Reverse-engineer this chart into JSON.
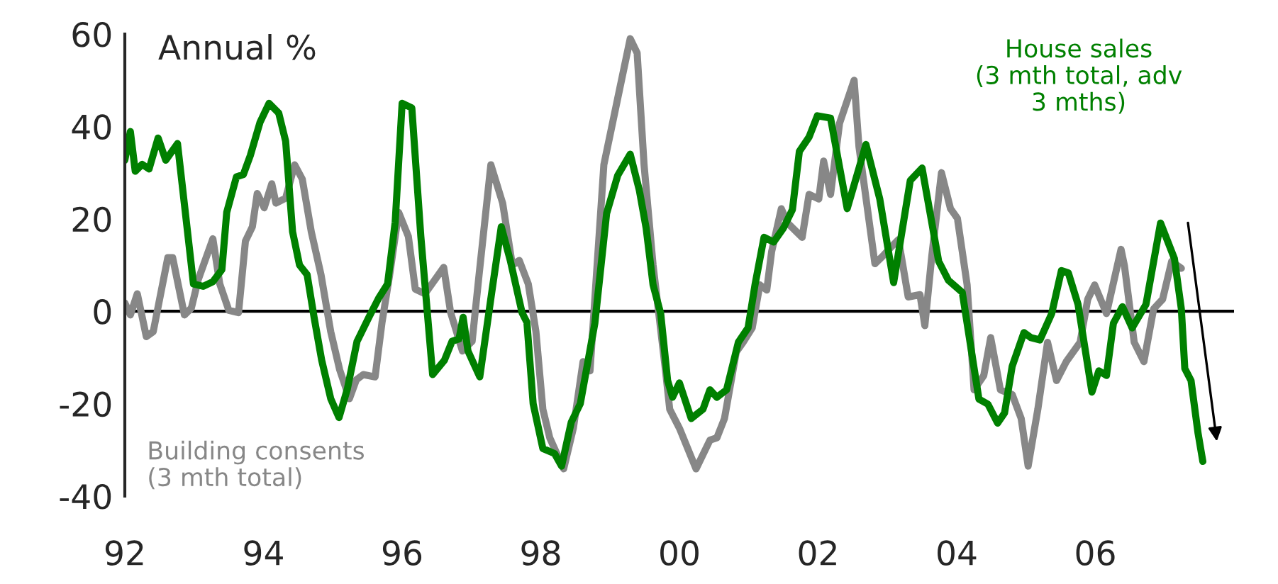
{
  "chart_data": {
    "type": "line",
    "annotations": [
      "Annual %"
    ],
    "xlim": [
      1992,
      2008
    ],
    "xticks": [
      {
        "value": 1992,
        "label": "92"
      },
      {
        "value": 1994,
        "label": "94"
      },
      {
        "value": 1996,
        "label": "96"
      },
      {
        "value": 1998,
        "label": "98"
      },
      {
        "value": 2000,
        "label": "00"
      },
      {
        "value": 2002,
        "label": "02"
      },
      {
        "value": 2004,
        "label": "04"
      },
      {
        "value": 2006,
        "label": "06"
      }
    ],
    "ylim": [
      -40,
      60
    ],
    "yticks": [
      -40,
      -20,
      0,
      20,
      40,
      60
    ],
    "ref_lines": [
      {
        "axis": "y",
        "value": 0,
        "color": "#000000"
      }
    ],
    "legend": false,
    "marker": "none",
    "line_style": "solid",
    "series": [
      {
        "name": "Building consents\n(3 mth total)",
        "color": "#878787",
        "x": [
          1992.0,
          1992.08,
          1992.18,
          1992.31,
          1992.41,
          1992.62,
          1992.69,
          1992.86,
          1992.96,
          1993.06,
          1993.27,
          1993.37,
          1993.5,
          1993.64,
          1993.74,
          1993.84,
          1993.91,
          1994.01,
          1994.12,
          1994.18,
          1994.32,
          1994.45,
          1994.56,
          1994.69,
          1994.83,
          1994.97,
          1995.1,
          1995.24,
          1995.34,
          1995.44,
          1995.61,
          1995.71,
          1995.82,
          1995.95,
          1996.09,
          1996.19,
          1996.33,
          1996.6,
          1996.7,
          1996.87,
          1997.01,
          1997.11,
          1997.28,
          1997.45,
          1997.59,
          1997.69,
          1997.82,
          1997.93,
          1998.03,
          1998.13,
          1998.33,
          1998.47,
          1998.61,
          1998.71,
          1998.91,
          1999.11,
          1999.29,
          1999.39,
          1999.49,
          1999.62,
          1999.8,
          1999.86,
          2000.0,
          2000.24,
          2000.44,
          2000.54,
          2000.65,
          2000.82,
          2000.92,
          2001.05,
          2001.16,
          2001.26,
          2001.33,
          2001.47,
          2001.56,
          2001.77,
          2001.87,
          2002.01,
          2002.08,
          2002.18,
          2002.31,
          2002.52,
          2002.59,
          2002.82,
          2002.93,
          2003.06,
          2003.16,
          2003.3,
          2003.47,
          2003.54,
          2003.64,
          2003.78,
          2003.91,
          2004.01,
          2004.15,
          2004.25,
          2004.39,
          2004.49,
          2004.63,
          2004.8,
          2004.93,
          2005.03,
          2005.17,
          2005.31,
          2005.44,
          2005.58,
          2005.78,
          2005.89,
          2005.99,
          2006.16,
          2006.37,
          2006.42,
          2006.56,
          2006.7,
          2006.84,
          2006.97,
          2007.1,
          2007.24
        ],
        "values": [
          1.8,
          -0.8,
          3.8,
          -5.5,
          -4.4,
          11.6,
          11.6,
          -0.8,
          0.7,
          6.9,
          15.7,
          5.9,
          0.2,
          -0.3,
          15.2,
          18.3,
          25.5,
          22.4,
          27.6,
          23.4,
          24.5,
          31.7,
          28.6,
          17.2,
          7.9,
          -4.4,
          -12.7,
          -18.9,
          -14.8,
          -13.7,
          -14.2,
          -2.4,
          7.9,
          21.4,
          16.2,
          4.8,
          3.8,
          9.5,
          -0.3,
          -8.6,
          -6.5,
          7.9,
          31.7,
          23.4,
          10,
          11,
          5.9,
          -4.4,
          -21.2,
          -27.4,
          -34.1,
          -25.3,
          -10.9,
          -12.9,
          31.7,
          46.1,
          59,
          55.9,
          31.7,
          10,
          -12.9,
          -21.2,
          -25.3,
          -34.1,
          -27.9,
          -27.4,
          -23.2,
          -8.8,
          -6.7,
          -3.6,
          5.7,
          4.6,
          12.9,
          22.2,
          19.1,
          16,
          25.3,
          24.3,
          32.5,
          25.3,
          40.7,
          50,
          35.6,
          10.3,
          11.9,
          14,
          15.5,
          3.1,
          3.6,
          -3.1,
          11.9,
          30,
          22.2,
          20.1,
          5.7,
          -17,
          -13.9,
          -5.7,
          -17,
          -18,
          -23.2,
          -33.5,
          -21.2,
          -6.7,
          -15,
          -10.9,
          -6.7,
          2.6,
          5.7,
          -0.5,
          13.4,
          9.8,
          -6.7,
          -10.9,
          0.5,
          2.6,
          10.8,
          9.3
        ]
      },
      {
        "name": "House sales\n(3 mth total, adv\n3 mths)",
        "color": "#008000",
        "x": [
          1992.0,
          1992.08,
          1992.15,
          1992.25,
          1992.35,
          1992.48,
          1992.59,
          1992.76,
          1992.99,
          1993.13,
          1993.27,
          1993.4,
          1993.47,
          1993.61,
          1993.71,
          1993.81,
          1993.95,
          1994.08,
          1994.22,
          1994.32,
          1994.42,
          1994.52,
          1994.63,
          1994.73,
          1994.84,
          1994.97,
          1995.09,
          1995.21,
          1995.35,
          1995.52,
          1995.66,
          1995.79,
          1995.9,
          1996.0,
          1996.14,
          1996.27,
          1996.44,
          1996.61,
          1996.72,
          1996.82,
          1996.88,
          1996.95,
          1997.12,
          1997.29,
          1997.43,
          1997.56,
          1997.73,
          1997.8,
          1997.89,
          1998.03,
          1998.2,
          1998.3,
          1998.44,
          1998.57,
          1998.78,
          1998.95,
          1999.11,
          1999.29,
          1999.42,
          1999.52,
          1999.62,
          1999.73,
          1999.83,
          1999.9,
          2000.0,
          2000.17,
          2000.34,
          2000.44,
          2000.54,
          2000.68,
          2000.85,
          2000.99,
          2001.09,
          2001.22,
          2001.36,
          2001.5,
          2001.63,
          2001.73,
          2001.87,
          2001.99,
          2002.18,
          2002.42,
          2002.69,
          2002.89,
          2003.09,
          2003.33,
          2003.5,
          2003.74,
          2003.88,
          2004.08,
          2004.32,
          2004.45,
          2004.59,
          2004.69,
          2004.8,
          2004.97,
          2005.07,
          2005.2,
          2005.37,
          2005.51,
          2005.61,
          2005.75,
          2005.95,
          2006.05,
          2006.16,
          2006.26,
          2006.39,
          2006.53,
          2006.73,
          2006.94,
          2007.14,
          2007.24,
          2007.29,
          2007.38,
          2007.48,
          2007.55
        ],
        "values": [
          32.7,
          38.9,
          30.3,
          31.8,
          30.8,
          37.5,
          32.7,
          36.3,
          5.9,
          5.4,
          6.4,
          9,
          21.4,
          29.1,
          29.6,
          33.7,
          40.9,
          45,
          42.9,
          36.8,
          17.2,
          10,
          7.9,
          -1.3,
          -10.6,
          -18.9,
          -23,
          -16.8,
          -6.5,
          -1.3,
          2.8,
          5.9,
          19.3,
          45,
          44,
          16.2,
          -13.7,
          -10.6,
          -6.5,
          -6,
          -1.3,
          -8.6,
          -14.2,
          3.8,
          18.3,
          11,
          -0.3,
          -2.4,
          -20,
          -29.7,
          -30.8,
          -33.5,
          -24,
          -20,
          -2.6,
          21.2,
          29.4,
          34,
          26.3,
          18,
          5.7,
          -0.5,
          -15,
          -18.6,
          -15.5,
          -23.2,
          -21.2,
          -17,
          -18.6,
          -17,
          -6.7,
          -3.6,
          5.7,
          16,
          15,
          18,
          22,
          34.6,
          37.7,
          42.3,
          41.8,
          22.2,
          36.1,
          24.3,
          6.2,
          28.3,
          31,
          10.8,
          6.7,
          4.1,
          -19,
          -20.1,
          -24.2,
          -22,
          -11.9,
          -4.6,
          -5.7,
          -6.2,
          -0.5,
          8.8,
          8.3,
          1.5,
          -17.5,
          -12.9,
          -13.9,
          -2.6,
          1,
          -3.6,
          1.5,
          19.1,
          11.4,
          0.5,
          -12.4,
          -15,
          -26.3,
          -32.5
        ]
      }
    ]
  }
}
